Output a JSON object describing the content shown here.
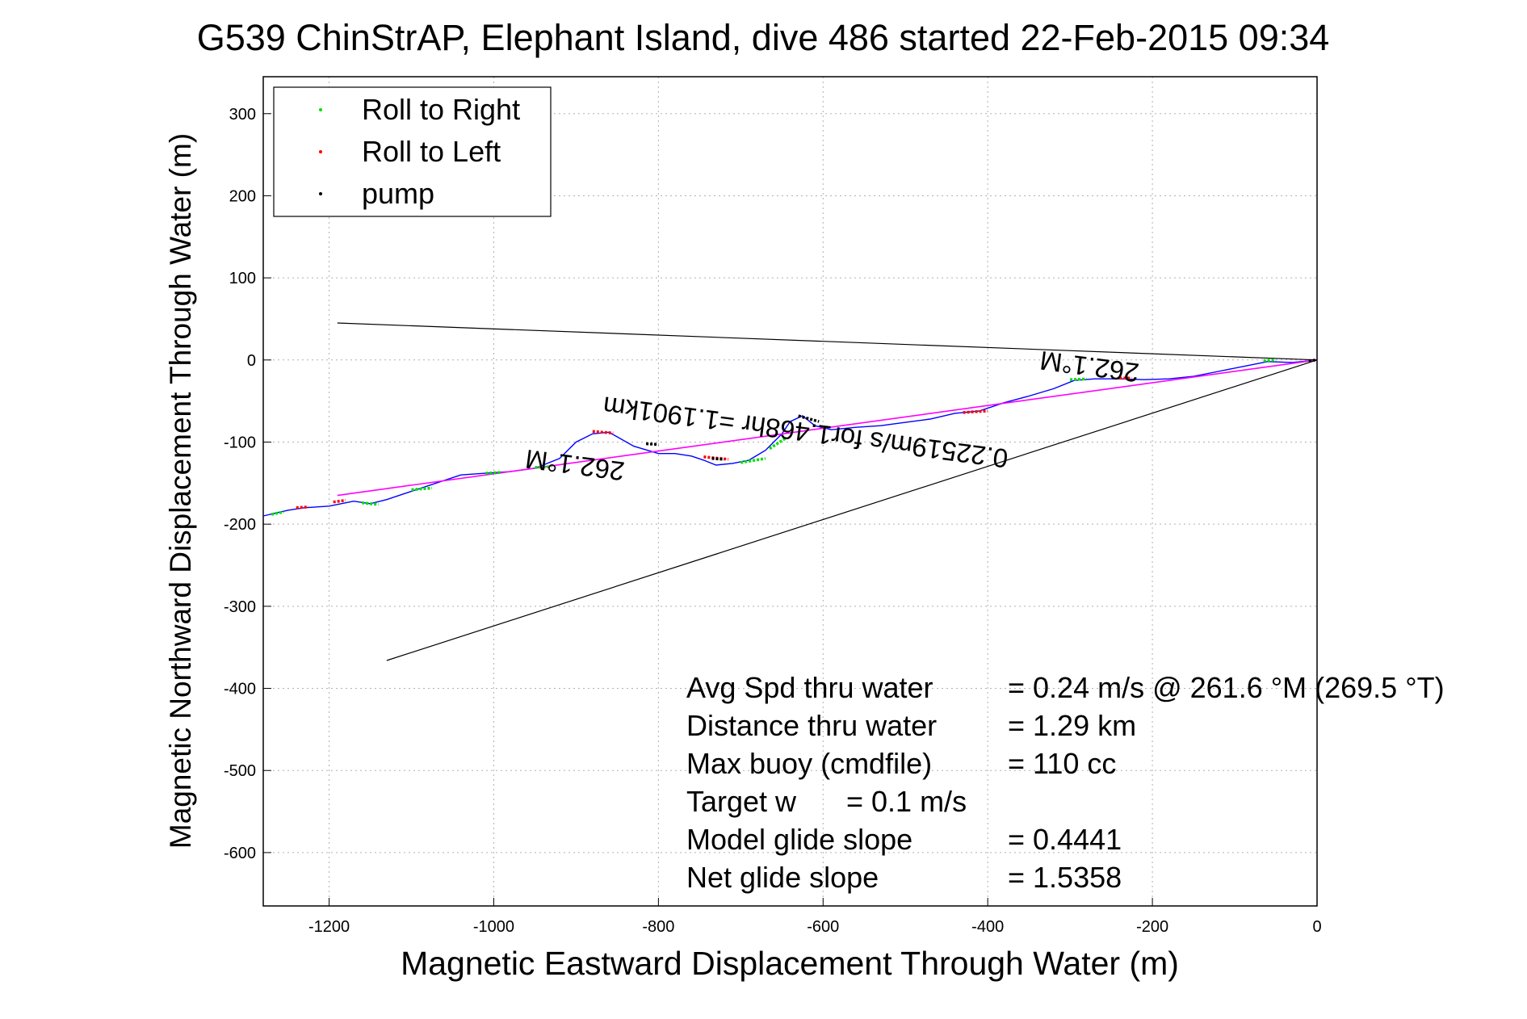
{
  "title": "G539 ChinStrAP, Elephant Island, dive 486 started 22-Feb-2015 09:34",
  "chart_data": {
    "type": "line",
    "xlabel": "Magnetic Eastward Displacement Through Water (m)",
    "ylabel": "Magnetic Northward Displacement Through Water (m)",
    "xlim": [
      -1280,
      0
    ],
    "ylim": [
      -665,
      345
    ],
    "xticks": [
      -1200,
      -1000,
      -800,
      -600,
      -400,
      -200,
      0
    ],
    "yticks": [
      300,
      200,
      100,
      0,
      -100,
      -200,
      -300,
      -400,
      -500,
      -600
    ],
    "grid": true,
    "legend_placement": "top-left",
    "legend": [
      {
        "label": "Roll to Right",
        "color": "#00e000"
      },
      {
        "label": "Roll to Left",
        "color": "#ff0000"
      },
      {
        "label": "pump",
        "color": "#000000"
      }
    ],
    "colors": {
      "track": "#0000ff",
      "fit": "#ff00ff",
      "bounds": "#000000"
    },
    "series": [
      {
        "kind": "track",
        "x": [
          0,
          -30,
          -60,
          -90,
          -120,
          -150,
          -180,
          -210,
          -240,
          -270,
          -295,
          -320,
          -350,
          -380,
          -410,
          -440,
          -470,
          -500,
          -530,
          -560,
          -590,
          -610,
          -625,
          -640,
          -650,
          -660,
          -670,
          -690,
          -710,
          -730,
          -745,
          -760,
          -780,
          -800,
          -830,
          -860,
          -880,
          -900,
          -920,
          -950,
          -980,
          -1010,
          -1040,
          -1070,
          -1100,
          -1130,
          -1150,
          -1170,
          -1200,
          -1230,
          -1250,
          -1280
        ],
        "y": [
          0,
          -3,
          -2,
          -8,
          -14,
          -20,
          -23,
          -24,
          -23,
          -23,
          -25,
          -35,
          -44,
          -52,
          -62,
          -65,
          -72,
          -76,
          -80,
          -82,
          -85,
          -80,
          -68,
          -75,
          -90,
          -100,
          -110,
          -122,
          -126,
          -128,
          -122,
          -117,
          -114,
          -114,
          -105,
          -88,
          -90,
          -100,
          -120,
          -132,
          -136,
          -138,
          -140,
          -150,
          -160,
          -170,
          -175,
          -172,
          -178,
          -180,
          -183,
          -190
        ]
      },
      {
        "kind": "fit",
        "x": [
          0,
          -1190
        ],
        "y": [
          0,
          -165
        ]
      },
      {
        "kind": "bound-upper",
        "x": [
          0,
          -1190
        ],
        "y": [
          0,
          45
        ]
      },
      {
        "kind": "bound-lower",
        "x": [
          0,
          -1130
        ],
        "y": [
          0,
          -366
        ]
      }
    ],
    "markers": {
      "roll_right": [
        {
          "x": [
            -1270,
            -1255
          ],
          "y": [
            -188,
            -185
          ]
        },
        {
          "x": [
            -1160,
            -1140
          ],
          "y": [
            -174,
            -176
          ]
        },
        {
          "x": [
            -1100,
            -1075
          ],
          "y": [
            -158,
            -156
          ]
        },
        {
          "x": [
            -1010,
            -990
          ],
          "y": [
            -138,
            -137
          ]
        },
        {
          "x": [
            -950,
            -930
          ],
          "y": [
            -131,
            -130
          ]
        },
        {
          "x": [
            -700,
            -670
          ],
          "y": [
            -125,
            -120
          ]
        },
        {
          "x": [
            -665,
            -645
          ],
          "y": [
            -108,
            -95
          ]
        },
        {
          "x": [
            -300,
            -280
          ],
          "y": [
            -24,
            -23
          ]
        },
        {
          "x": [
            -65,
            -50
          ],
          "y": [
            -1,
            0
          ]
        }
      ],
      "roll_left": [
        {
          "x": [
            -1240,
            -1225
          ],
          "y": [
            -180,
            -179
          ]
        },
        {
          "x": [
            -1195,
            -1180
          ],
          "y": [
            -173,
            -171
          ]
        },
        {
          "x": [
            -880,
            -855
          ],
          "y": [
            -87,
            -89
          ]
        },
        {
          "x": [
            -745,
            -715
          ],
          "y": [
            -118,
            -121
          ]
        },
        {
          "x": [
            -430,
            -400
          ],
          "y": [
            -64,
            -62
          ]
        },
        {
          "x": [
            -240,
            -225
          ],
          "y": [
            -22,
            -22
          ]
        }
      ],
      "pump": [
        {
          "x": [
            -815,
            -800
          ],
          "y": [
            -102,
            -103
          ]
        },
        {
          "x": [
            -735,
            -720
          ],
          "y": [
            -120,
            -121
          ]
        },
        {
          "x": [
            -630,
            -605
          ],
          "y": [
            -68,
            -75
          ]
        },
        {
          "x": [
            -10,
            0
          ],
          "y": [
            -1,
            0
          ]
        }
      ]
    },
    "annotations": [
      {
        "text": "262.1°M",
        "x": -275,
        "y": 3,
        "rotation": 187.5
      },
      {
        "text": "0.22519m/s for1.468hr =1.1901km",
        "x": -620,
        "y": -77,
        "rotation": 187.5
      },
      {
        "text": "262.1°M",
        "x": -900,
        "y": -117,
        "rotation": 187.5
      }
    ],
    "stats": [
      {
        "label": "Avg Spd thru water",
        "value": "=  0.24 m/s @ 261.6 °M (269.5 °T)"
      },
      {
        "label": "Distance thru water",
        "value": "=  1.29 km"
      },
      {
        "label": "Max buoy (cmdfile)",
        "value": "= 110 cc"
      },
      {
        "label": "Target w",
        "value": "= 0.1 m/s"
      },
      {
        "label": "Model glide slope",
        "value": "= 0.4441"
      },
      {
        "label": "Net glide slope",
        "value": "= 1.5358"
      }
    ]
  }
}
